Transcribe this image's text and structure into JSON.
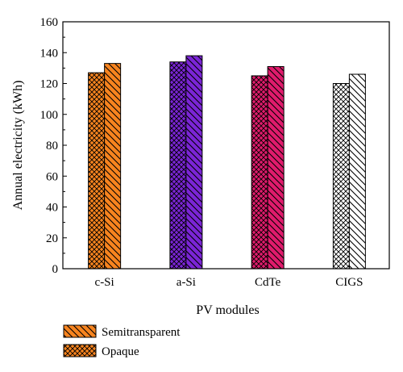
{
  "chart_data": {
    "type": "bar",
    "categories": [
      "c-Si",
      "a-Si",
      "CdTe",
      "CIGS"
    ],
    "series": [
      {
        "name": "Opaque",
        "pattern": "crosshatch",
        "values": [
          127,
          134,
          125,
          120
        ]
      },
      {
        "name": "Semitransparent",
        "pattern": "diagonal",
        "values": [
          133,
          138,
          131,
          126
        ]
      }
    ],
    "colors": [
      "#f7841f",
      "#7b25d6",
      "#e01b6c",
      "#ffffff"
    ],
    "xlabel": "PV modules",
    "ylabel": "Annual electricity (kWh)",
    "ylim": [
      0,
      160
    ],
    "yticks": [
      0,
      20,
      40,
      60,
      80,
      100,
      120,
      140,
      160
    ],
    "legend_position": "bottom-left",
    "legend_order": [
      "Semitransparent",
      "Opaque"
    ],
    "grid": false
  }
}
